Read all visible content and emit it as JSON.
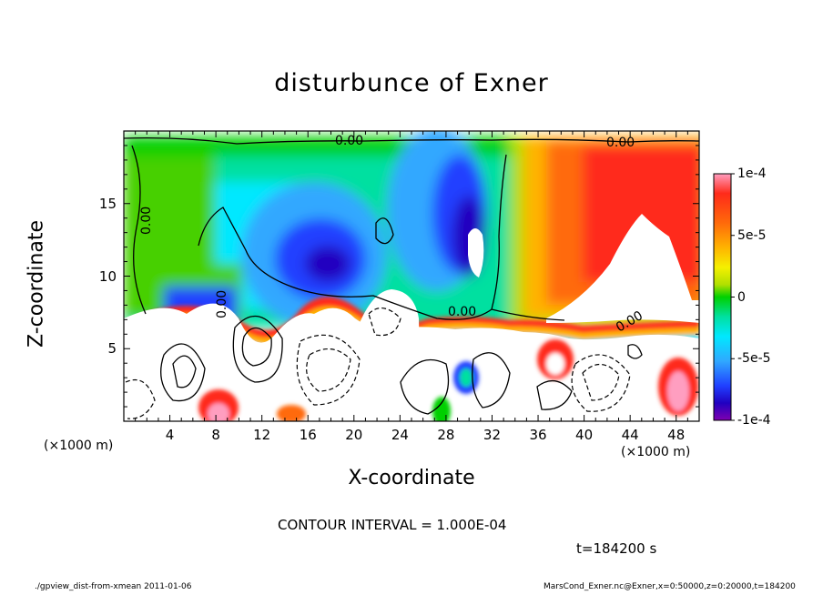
{
  "title": "disturbunce of Exner",
  "xlabel": "X-coordinate",
  "ylabel": "Z-coordinate",
  "x_units_left": "(×1000 m)",
  "x_units_right": "(×1000 m)",
  "contour_interval": "CONTOUR INTERVAL = 1.000E-04",
  "time_label": "t=184200 s",
  "footer_left": "./gpview_dist-from-xmean   2011-01-06",
  "footer_right": "MarsCond_Exner.nc@Exner,x=0:50000,z=0:20000,t=184200",
  "contour_labels": [
    "0.00",
    "0.00",
    "0.00",
    "0.00",
    "0.00",
    "0.00"
  ],
  "chart_data": {
    "type": "heatmap",
    "title": "disturbunce of Exner",
    "xlabel": "X-coordinate",
    "ylabel": "Z-coordinate",
    "xlim": [
      0,
      50
    ],
    "ylim": [
      0,
      20
    ],
    "x_ticks": [
      "4",
      "8",
      "12",
      "16",
      "20",
      "24",
      "28",
      "32",
      "36",
      "40",
      "44",
      "48"
    ],
    "y_ticks": [
      "5",
      "10",
      "15"
    ],
    "colorbar": {
      "range": [
        -0.0001,
        0.0001
      ],
      "tick_labels": [
        "1e-4",
        "5e-5",
        "0",
        "-5e-5",
        "-1e-4"
      ],
      "tick_values": [
        0.0001,
        5e-05,
        0,
        -5e-05,
        -0.0001
      ],
      "colors": [
        "#ff9ec0",
        "#ff2a1a",
        "#ff6a0a",
        "#ffb400",
        "#f5f000",
        "#b0e000",
        "#46d000",
        "#00d000",
        "#00e0a0",
        "#00e8ff",
        "#30a8ff",
        "#2040ff",
        "#2000c0",
        "#8000b0"
      ]
    },
    "contour_interval": 0.0001,
    "time": "t=184200 s",
    "approx_field_regions": [
      {
        "x": [
          0,
          50
        ],
        "z": [
          18.5,
          20
        ],
        "value": 0.0
      },
      {
        "x": [
          1,
          14
        ],
        "z": [
          8,
          18
        ],
        "value": -2e-05
      },
      {
        "x": [
          15,
          24
        ],
        "z": [
          9,
          17
        ],
        "value": -7e-05
      },
      {
        "x": [
          26,
          33
        ],
        "z": [
          9,
          17
        ],
        "value": -8e-05
      },
      {
        "x": [
          35,
          50
        ],
        "z": [
          8,
          19
        ],
        "value": 7e-05
      },
      {
        "x": [
          0,
          36
        ],
        "z": [
          0,
          7
        ],
        "value": "out of range (white)"
      },
      {
        "x": [
          40,
          50
        ],
        "z": [
          0,
          6
        ],
        "value": "out of range (white)"
      }
    ]
  }
}
